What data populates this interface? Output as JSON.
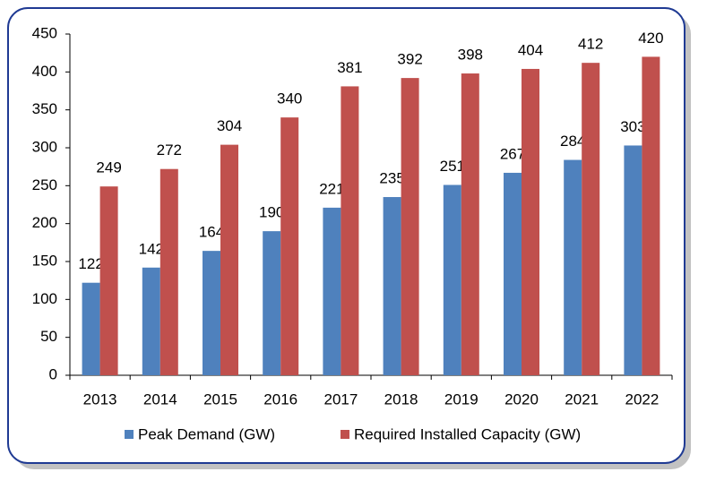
{
  "chart_data": {
    "type": "bar",
    "categories": [
      "2013",
      "2014",
      "2015",
      "2016",
      "2017",
      "2018",
      "2019",
      "2020",
      "2021",
      "2022"
    ],
    "series": [
      {
        "name": "Peak Demand (GW)",
        "color": "#4f81bd",
        "values": [
          122,
          142,
          164,
          190,
          221,
          235,
          251,
          267,
          284,
          303
        ]
      },
      {
        "name": "Required Installed Capacity (GW)",
        "color": "#c0504d",
        "values": [
          249,
          272,
          304,
          340,
          381,
          392,
          398,
          404,
          412,
          420
        ]
      }
    ],
    "ylim": [
      0,
      450
    ],
    "yticks": [
      0,
      50,
      100,
      150,
      200,
      250,
      300,
      350,
      400,
      450
    ],
    "grid": false,
    "legend": "bottom"
  }
}
